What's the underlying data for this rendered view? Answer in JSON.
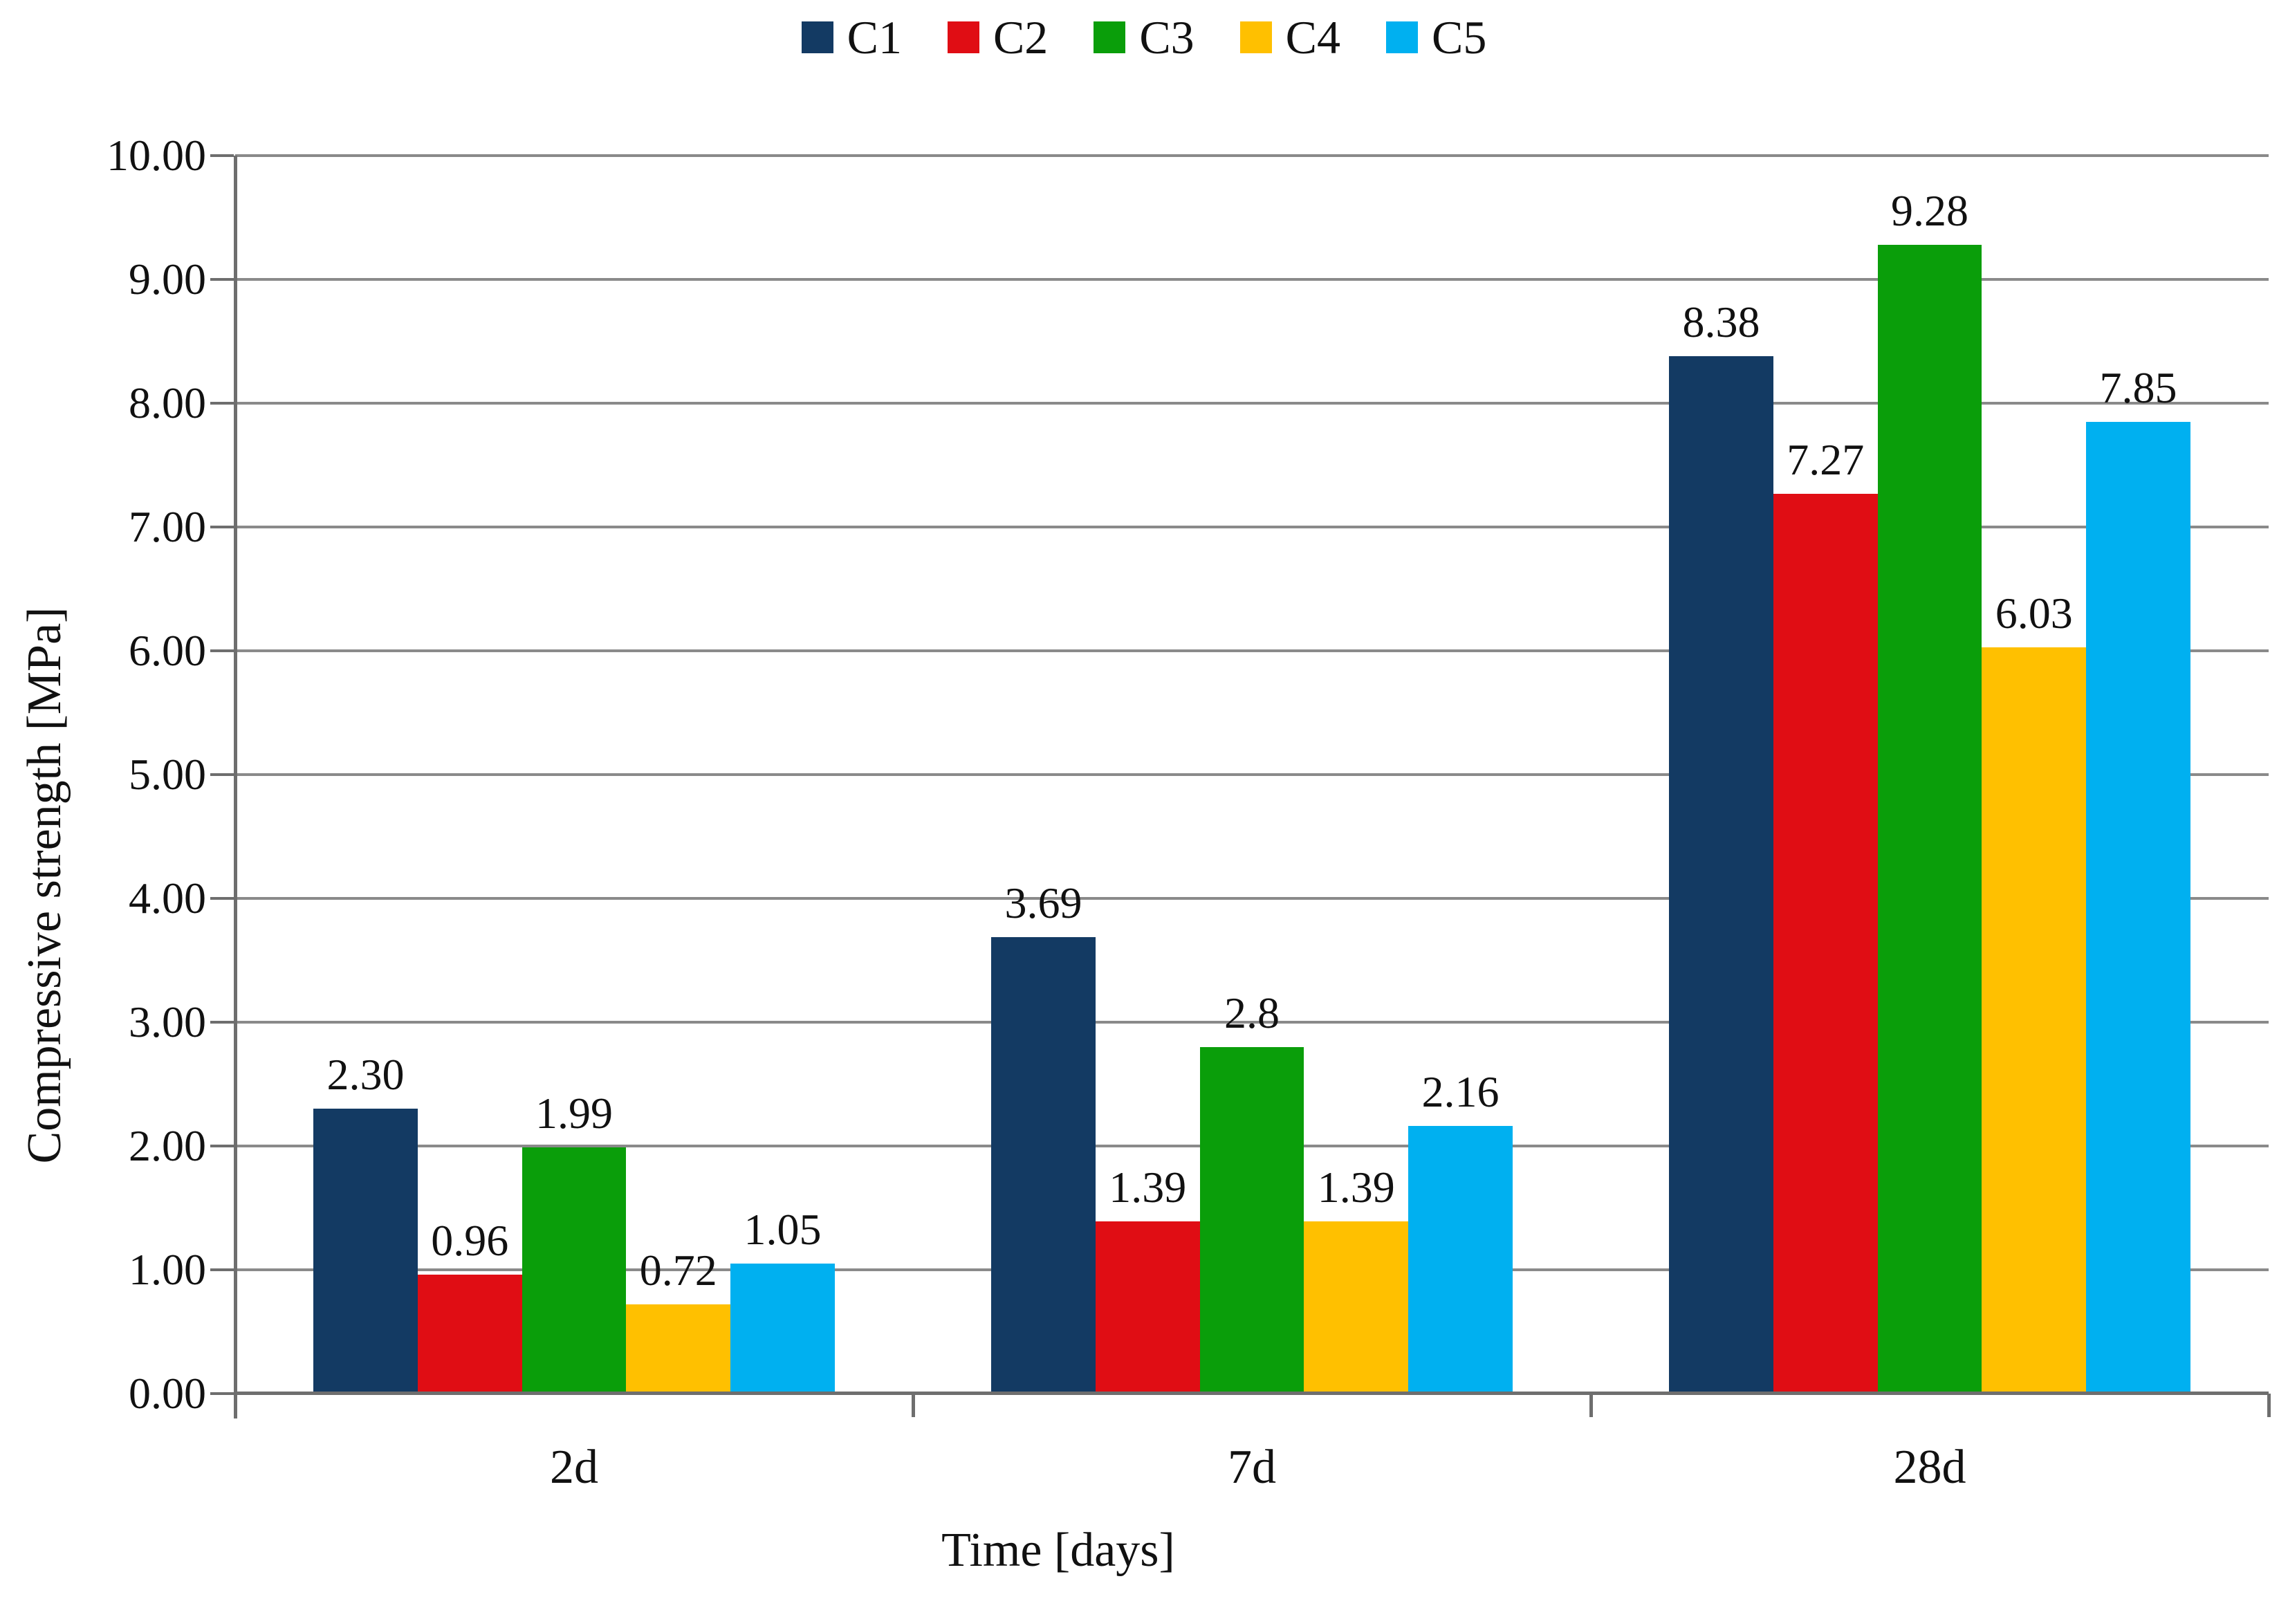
{
  "chart_data": {
    "type": "bar",
    "title": "",
    "categories": [
      "2d",
      "7d",
      "28d"
    ],
    "series": [
      {
        "name": "C1",
        "color": "#133a63",
        "values": [
          2.3,
          3.69,
          8.38
        ],
        "value_labels": [
          "2.30",
          "3.69",
          "8.38"
        ]
      },
      {
        "name": "C2",
        "color": "#e00d14",
        "values": [
          0.96,
          1.39,
          7.27
        ],
        "value_labels": [
          "0.96",
          "1.39",
          "7.27"
        ]
      },
      {
        "name": "C3",
        "color": "#0a9e0a",
        "values": [
          1.99,
          2.8,
          9.28
        ],
        "value_labels": [
          "1.99",
          "2.8",
          "9.28"
        ]
      },
      {
        "name": "C4",
        "color": "#ffc000",
        "values": [
          0.72,
          1.39,
          6.03
        ],
        "value_labels": [
          "0.72",
          "1.39",
          "6.03"
        ]
      },
      {
        "name": "C5",
        "color": "#00b0f0",
        "values": [
          1.05,
          2.16,
          7.85
        ],
        "value_labels": [
          "1.05",
          "2.16",
          "7.85"
        ]
      }
    ],
    "xlabel": "Time [days]",
    "ylabel": "Compressive strength [MPa]",
    "ylim": [
      0,
      10
    ],
    "ytick_step": 1,
    "ytick_labels": [
      "0.00",
      "1.00",
      "2.00",
      "3.00",
      "4.00",
      "5.00",
      "6.00",
      "7.00",
      "8.00",
      "9.00",
      "10.00"
    ],
    "grid": true,
    "legend_position": "top",
    "data_labels": true
  },
  "colors": {
    "background": "#ffffff",
    "gridline": "#8a8a8a",
    "axis": "#6e6e6e",
    "text": "#111111"
  }
}
